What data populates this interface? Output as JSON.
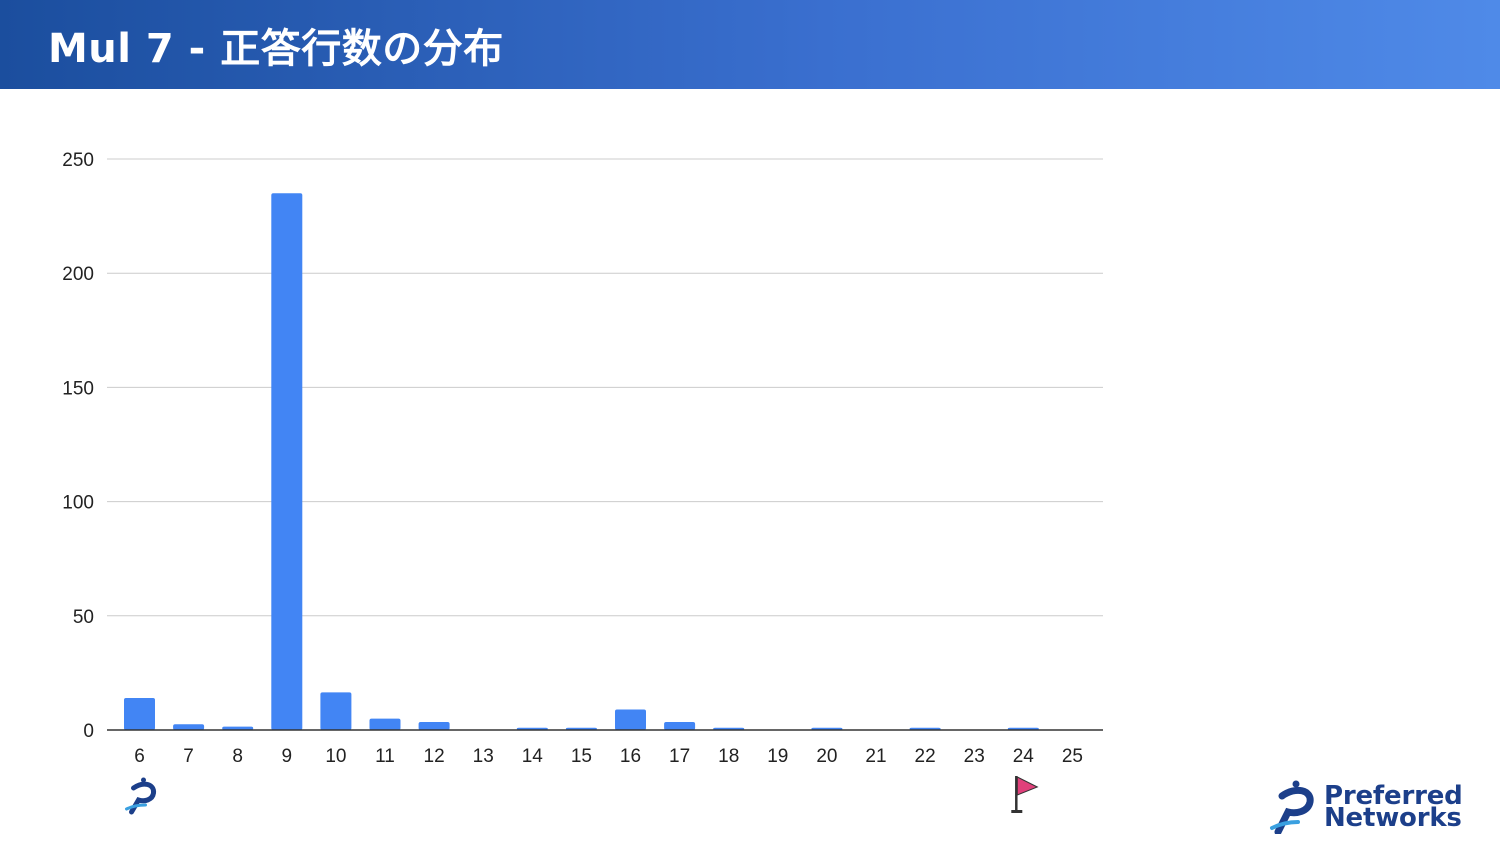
{
  "header": {
    "title": "Mul 7 - 正答行数の分布"
  },
  "colors": {
    "bar": "#4285f4",
    "grid": "#cccccc",
    "axis": "#333333",
    "header_left": "#1b4e9e",
    "header_right": "#4f8ae8",
    "flag": "#e0407a",
    "brand": "#1c3f8a"
  },
  "chart_data": {
    "type": "bar",
    "categories": [
      "6",
      "7",
      "8",
      "9",
      "10",
      "11",
      "12",
      "13",
      "14",
      "15",
      "16",
      "17",
      "18",
      "19",
      "20",
      "21",
      "22",
      "23",
      "24",
      "25"
    ],
    "values": [
      14,
      2.5,
      1.5,
      235,
      16.5,
      5,
      3.5,
      0,
      1,
      1,
      9,
      3.5,
      1,
      0,
      1,
      0,
      1,
      0,
      1,
      0
    ],
    "y_ticks": [
      0,
      50,
      100,
      150,
      200,
      250
    ],
    "ylim": [
      0,
      250
    ],
    "grid": true,
    "legend": "none",
    "title": "",
    "xlabel": "",
    "ylabel": ""
  },
  "markers": {
    "start_icon": "pfn-mark-icon",
    "start_category": "6",
    "goal_icon": "goal-flag-icon",
    "goal_category": "24"
  },
  "logo": {
    "line1": "Preferred",
    "line2": "Networks"
  }
}
